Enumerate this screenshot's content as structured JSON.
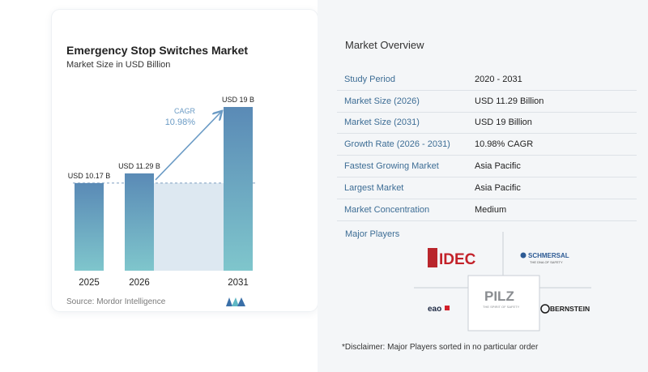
{
  "chart": {
    "title": "Emergency Stop Switches Market",
    "subtitle": "Market Size in USD Billion",
    "source": "Source: Mordor Intelligence",
    "cagr_label": "CAGR",
    "cagr_value": "10.98%"
  },
  "chart_data": {
    "type": "bar",
    "title": "Emergency Stop Switches Market",
    "subtitle": "Market Size in USD Billion",
    "categories": [
      "2025",
      "2026",
      "2031"
    ],
    "values": [
      10.17,
      11.29,
      19
    ],
    "data_labels": [
      "USD 10.17 B",
      "USD 11.29 B",
      "USD 19 B"
    ],
    "ylim": [
      0,
      19
    ],
    "grid": false,
    "annotation": {
      "text": "CAGR 10.98%",
      "from": "2026",
      "to": "2031"
    },
    "colors": {
      "bar_top": "#5a8ab6",
      "bar_bottom": "#7fc6cc",
      "shade": "#dde8f1",
      "arrow": "#6b9bc5"
    }
  },
  "overview": {
    "title": "Market Overview",
    "rows": [
      {
        "label": "Study Period",
        "value": "2020 - 2031"
      },
      {
        "label": "Market Size (2026)",
        "value": "USD 11.29 Billion"
      },
      {
        "label": "Market Size (2031)",
        "value": "USD 19 Billion"
      },
      {
        "label": "Growth Rate (2026 - 2031)",
        "value": "10.98% CAGR"
      },
      {
        "label": "Fastest Growing Market",
        "value": "Asia Pacific"
      },
      {
        "label": "Largest Market",
        "value": "Asia Pacific"
      },
      {
        "label": "Market Concentration",
        "value": "Medium"
      }
    ]
  },
  "players": {
    "title": "Major Players",
    "logos": {
      "idec": "IDEC",
      "schmersal": "SCHMERSAL",
      "schmersal_tag": "THE DNA OF SAFETY",
      "pilz": "PILZ",
      "pilz_tag": "THE SPIRIT OF SAFETY",
      "eao": "eao",
      "bernstein": "BERNSTEIN"
    }
  },
  "disclaimer": "*Disclaimer: Major Players sorted in no particular order"
}
